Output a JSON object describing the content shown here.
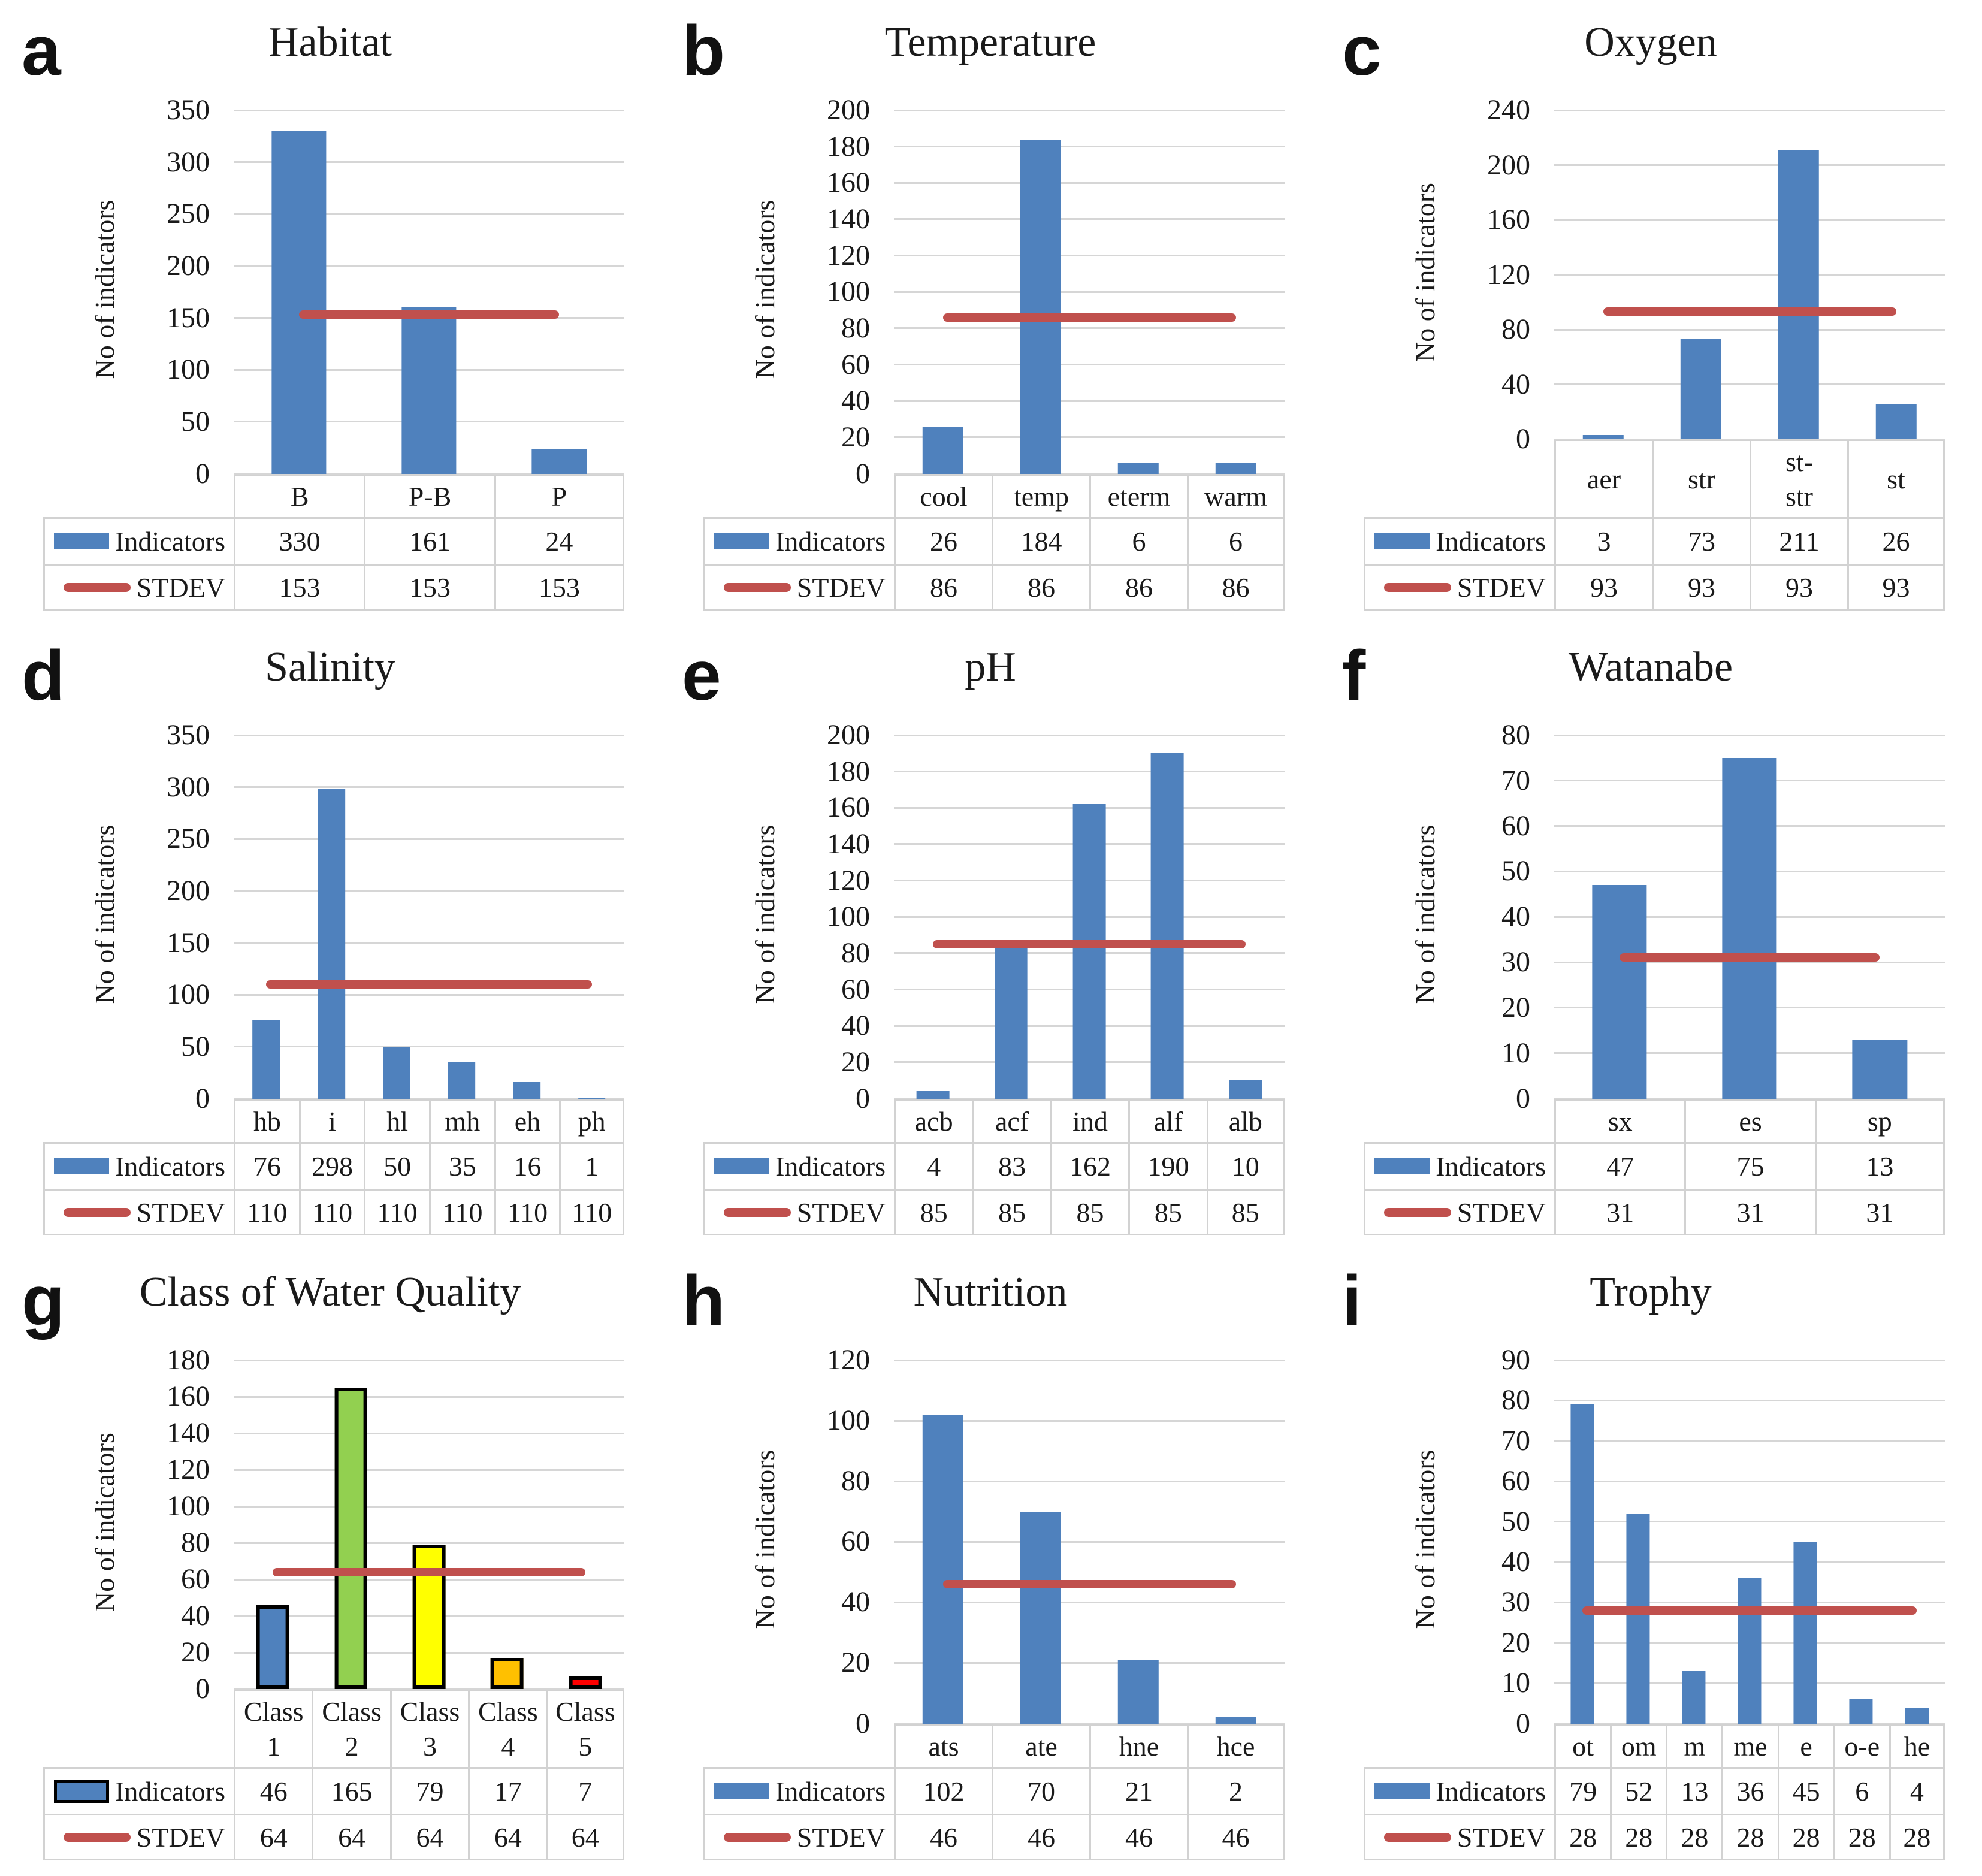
{
  "figure": {
    "y_axis_label": "No of indicators",
    "colors": {
      "bar_blue": "#4f81bd",
      "stdev_red": "#c0504d",
      "gridline": "#d6d6d6",
      "table_border": "#d2d2d2",
      "bar_outline": "#000000"
    }
  },
  "chart_data": [
    {
      "panel_letter": "a",
      "type": "bar",
      "title": "Habitat",
      "ylabel": "No of indicators",
      "ylim": [
        0,
        350
      ],
      "ytick_step": 50,
      "grid": true,
      "yticks": [
        0,
        50,
        100,
        150,
        200,
        250,
        300,
        350
      ],
      "categories": [
        "B",
        "P-B",
        "P"
      ],
      "series": [
        {
          "name": "Indicators",
          "values": [
            330,
            161,
            24
          ]
        },
        {
          "name": "STDEV",
          "values": [
            153,
            153,
            153
          ]
        }
      ],
      "stdev_value": 153
    },
    {
      "panel_letter": "b",
      "type": "bar",
      "title": "Temperature",
      "ylabel": "No of indicators",
      "ylim": [
        0,
        200
      ],
      "ytick_step": 20,
      "grid": true,
      "yticks": [
        0,
        20,
        40,
        60,
        80,
        100,
        120,
        140,
        160,
        180,
        200
      ],
      "categories": [
        "cool",
        "temp",
        "eterm",
        "warm"
      ],
      "series": [
        {
          "name": "Indicators",
          "values": [
            26,
            184,
            6,
            6
          ]
        },
        {
          "name": "STDEV",
          "values": [
            86,
            86,
            86,
            86
          ]
        }
      ],
      "stdev_value": 86
    },
    {
      "panel_letter": "c",
      "type": "bar",
      "title": "Oxygen",
      "ylabel": "No of indicators",
      "ylim": [
        0,
        240
      ],
      "ytick_step": 40,
      "grid": true,
      "yticks": [
        0,
        40,
        80,
        120,
        160,
        200,
        240
      ],
      "categories": [
        "aer",
        "str",
        "st-\nstr",
        "st"
      ],
      "series": [
        {
          "name": "Indicators",
          "values": [
            3,
            73,
            211,
            26
          ]
        },
        {
          "name": "STDEV",
          "values": [
            93,
            93,
            93,
            93
          ]
        }
      ],
      "stdev_value": 93
    },
    {
      "panel_letter": "d",
      "type": "bar",
      "title": "Salinity",
      "ylabel": "No of indicators",
      "ylim": [
        0,
        350
      ],
      "ytick_step": 50,
      "grid": true,
      "yticks": [
        0,
        50,
        100,
        150,
        200,
        250,
        300,
        350
      ],
      "categories": [
        "hb",
        "i",
        "hl",
        "mh",
        "eh",
        "ph"
      ],
      "series": [
        {
          "name": "Indicators",
          "values": [
            76,
            298,
            50,
            35,
            16,
            1
          ]
        },
        {
          "name": "STDEV",
          "values": [
            110,
            110,
            110,
            110,
            110,
            110
          ]
        }
      ],
      "stdev_value": 110
    },
    {
      "panel_letter": "e",
      "type": "bar",
      "title": "pH",
      "ylabel": "No of indicators",
      "ylim": [
        0,
        200
      ],
      "ytick_step": 20,
      "grid": true,
      "yticks": [
        0,
        20,
        40,
        60,
        80,
        100,
        120,
        140,
        160,
        180,
        200
      ],
      "categories": [
        "acb",
        "acf",
        "ind",
        "alf",
        "alb"
      ],
      "series": [
        {
          "name": "Indicators",
          "values": [
            4,
            83,
            162,
            190,
            10
          ]
        },
        {
          "name": "STDEV",
          "values": [
            85,
            85,
            85,
            85,
            85
          ]
        }
      ],
      "stdev_value": 85
    },
    {
      "panel_letter": "f",
      "type": "bar",
      "title": "Watanabe",
      "ylabel": "No of indicators",
      "ylim": [
        0,
        80
      ],
      "ytick_step": 10,
      "grid": true,
      "yticks": [
        0,
        10,
        20,
        30,
        40,
        50,
        60,
        70,
        80
      ],
      "categories": [
        "sx",
        "es",
        "sp"
      ],
      "series": [
        {
          "name": "Indicators",
          "values": [
            47,
            75,
            13
          ]
        },
        {
          "name": "STDEV",
          "values": [
            31,
            31,
            31
          ]
        }
      ],
      "stdev_value": 31
    },
    {
      "panel_letter": "g",
      "type": "bar",
      "title": "Class of Water Quality",
      "ylabel": "No of indicators",
      "ylim": [
        0,
        180
      ],
      "ytick_step": 20,
      "grid": true,
      "yticks": [
        0,
        20,
        40,
        60,
        80,
        100,
        120,
        140,
        160,
        180
      ],
      "categories": [
        "Class\n1",
        "Class\n2",
        "Class\n3",
        "Class\n4",
        "Class\n5"
      ],
      "series": [
        {
          "name": "Indicators",
          "values": [
            46,
            165,
            79,
            17,
            7
          ]
        },
        {
          "name": "STDEV",
          "values": [
            64,
            64,
            64,
            64,
            64
          ]
        }
      ],
      "stdev_value": 64,
      "bar_colors": [
        "#4f81bd",
        "#92d050",
        "#ffff00",
        "#ffc000",
        "#ff0000"
      ],
      "bar_outline": true
    },
    {
      "panel_letter": "h",
      "type": "bar",
      "title": "Nutrition",
      "ylabel": "No of indicators",
      "ylim": [
        0,
        120
      ],
      "ytick_step": 20,
      "grid": true,
      "yticks": [
        0,
        20,
        40,
        60,
        80,
        100,
        120
      ],
      "categories": [
        "ats",
        "ate",
        "hne",
        "hce"
      ],
      "series": [
        {
          "name": "Indicators",
          "values": [
            102,
            70,
            21,
            2
          ]
        },
        {
          "name": "STDEV",
          "values": [
            46,
            46,
            46,
            46
          ]
        }
      ],
      "stdev_value": 46
    },
    {
      "panel_letter": "i",
      "type": "bar",
      "title": "Trophy",
      "ylabel": "No of indicators",
      "ylim": [
        0,
        90
      ],
      "ytick_step": 10,
      "grid": true,
      "yticks": [
        0,
        10,
        20,
        30,
        40,
        50,
        60,
        70,
        80,
        90
      ],
      "categories": [
        "ot",
        "om",
        "m",
        "me",
        "e",
        "o-e",
        "he"
      ],
      "series": [
        {
          "name": "Indicators",
          "values": [
            79,
            52,
            13,
            36,
            45,
            6,
            4
          ]
        },
        {
          "name": "STDEV",
          "values": [
            28,
            28,
            28,
            28,
            28,
            28,
            28
          ]
        }
      ],
      "stdev_value": 28
    }
  ]
}
